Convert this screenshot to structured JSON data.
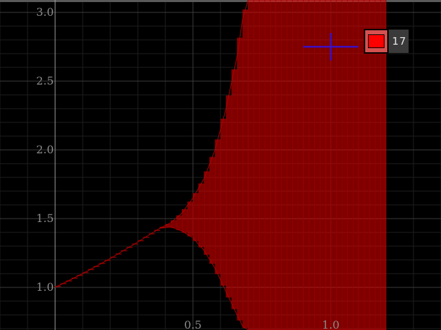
{
  "chart_data": {
    "type": "area",
    "title": "",
    "xlabel": "",
    "ylabel": "",
    "xlim": [
      -0.2,
      1.4
    ],
    "ylim": [
      0.69,
      3.09
    ],
    "x_ticks": [
      "0.5",
      "1.0"
    ],
    "y_ticks": [
      "1.0",
      "1.5",
      "2.0",
      "2.5",
      "3.0"
    ],
    "grid": true,
    "legend": {
      "position": "top-right",
      "label": "17",
      "color": "#ff0000"
    },
    "cursor": {
      "x": 1.0,
      "y": 2.75,
      "color": "#3a10c8"
    },
    "series": [
      {
        "color": "#ff0000",
        "x": [
          0.0,
          0.1,
          0.2,
          0.3,
          0.38,
          0.42,
          0.46,
          0.5,
          0.54,
          0.58,
          0.62,
          0.66,
          0.68,
          0.7,
          1.2
        ],
        "upper": [
          1.0,
          1.1,
          1.21,
          1.33,
          1.43,
          1.47,
          1.54,
          1.65,
          1.79,
          2.0,
          2.3,
          2.68,
          2.95,
          3.09,
          3.09
        ],
        "lower": [
          1.0,
          1.1,
          1.21,
          1.33,
          1.43,
          1.44,
          1.41,
          1.36,
          1.27,
          1.14,
          0.97,
          0.8,
          0.72,
          0.69,
          0.69
        ]
      }
    ]
  }
}
